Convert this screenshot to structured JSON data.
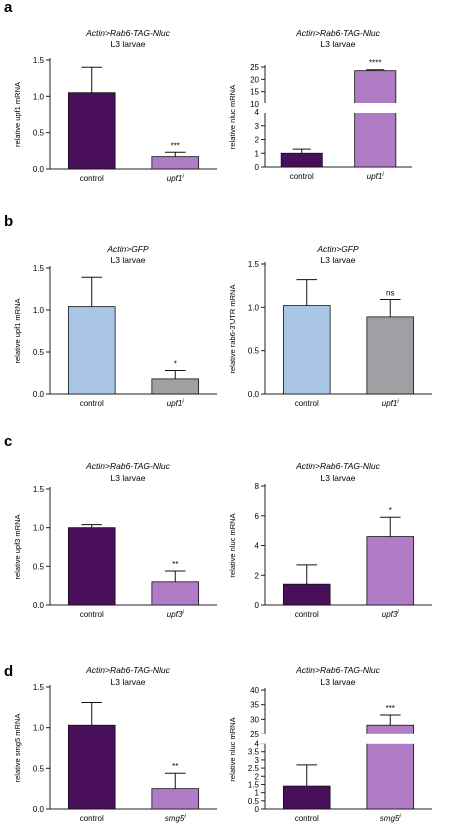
{
  "panels": [
    {
      "id": "a",
      "label": "a"
    },
    {
      "id": "b",
      "label": "b"
    },
    {
      "id": "c",
      "label": "c"
    },
    {
      "id": "d",
      "label": "d"
    }
  ],
  "colors": {
    "dark_purple": "#4a0f5a",
    "light_purple": "#b07cc6",
    "light_blue": "#a9c6e6",
    "grey": "#a0a0a4"
  },
  "chart_data": [
    {
      "panel": "a",
      "type": "bar",
      "title": "Actin>Rab6-TAG-Nluc",
      "subtitle": "L3 larvae",
      "ylabel": "relative upf1 mRNA",
      "categories": [
        "control",
        "upf1"
      ],
      "category_superscripts": [
        "",
        "i"
      ],
      "values": [
        1.05,
        0.17
      ],
      "errors": [
        0.35,
        0.06
      ],
      "significance": [
        "",
        "***"
      ],
      "colors": [
        "#4a0f5a",
        "#b07cc6"
      ],
      "ylim": [
        0,
        1.5
      ],
      "yticks": [
        "0.0",
        "0.5",
        "1.0",
        "1.5"
      ]
    },
    {
      "panel": "a",
      "type": "bar",
      "title": "Actin>Rab6-TAG-Nluc",
      "subtitle": "L3 larvae",
      "ylabel": "relative nluc mRNA",
      "categories": [
        "control",
        "upf1"
      ],
      "category_superscripts": [
        "",
        "i"
      ],
      "values": [
        1.0,
        23.5
      ],
      "errors": [
        0.3,
        0.4
      ],
      "significance": [
        "",
        "****"
      ],
      "colors": [
        "#4a0f5a",
        "#b07cc6"
      ],
      "ylim": [
        0,
        25
      ],
      "axis_break": [
        4,
        10
      ],
      "yticks": [
        "0",
        "1",
        "2",
        "3",
        "4",
        "10",
        "15",
        "20",
        "25"
      ]
    },
    {
      "panel": "b",
      "type": "bar",
      "title": "Actin>GFP",
      "subtitle": "L3 larvae",
      "ylabel": "relative upf1 mRNA",
      "categories": [
        "control",
        "upf1"
      ],
      "category_superscripts": [
        "",
        "i"
      ],
      "values": [
        1.04,
        0.18
      ],
      "errors": [
        0.35,
        0.1
      ],
      "significance": [
        "",
        "*"
      ],
      "colors": [
        "#a9c6e6",
        "#a0a0a4"
      ],
      "ylim": [
        0,
        1.5
      ],
      "yticks": [
        "0.0",
        "0.5",
        "1.0",
        "1.5"
      ]
    },
    {
      "panel": "b",
      "type": "bar",
      "title": "Actin>GFP",
      "subtitle": "L3 larvae",
      "ylabel": "relative rab6-3'UTR mRNA",
      "categories": [
        "control",
        "upf1"
      ],
      "category_superscripts": [
        "",
        "i"
      ],
      "values": [
        1.02,
        0.89
      ],
      "errors": [
        0.3,
        0.2
      ],
      "significance": [
        "",
        "ns"
      ],
      "colors": [
        "#a9c6e6",
        "#a0a0a4"
      ],
      "ylim": [
        0,
        1.5
      ],
      "yticks": [
        "0.0",
        "0.5",
        "1.0",
        "1.5"
      ]
    },
    {
      "panel": "c",
      "type": "bar",
      "title": "Actin>Rab6-TAG-Nluc",
      "subtitle": "L3 larvae",
      "ylabel": "relative upf3 mRNA",
      "categories": [
        "control",
        "upf3"
      ],
      "category_superscripts": [
        "",
        "i"
      ],
      "values": [
        1.0,
        0.3
      ],
      "errors": [
        0.04,
        0.14
      ],
      "significance": [
        "",
        "**"
      ],
      "colors": [
        "#4a0f5a",
        "#b07cc6"
      ],
      "ylim": [
        0,
        1.5
      ],
      "yticks": [
        "0.0",
        "0.5",
        "1.0",
        "1.5"
      ]
    },
    {
      "panel": "c",
      "type": "bar",
      "title": "Actin>Rab6-TAG-Nluc",
      "subtitle": "L3 larvae",
      "ylabel": "relative nluc mRNA",
      "categories": [
        "control",
        "upf3"
      ],
      "category_superscripts": [
        "",
        "i"
      ],
      "values": [
        1.4,
        4.6
      ],
      "errors": [
        1.3,
        1.3
      ],
      "significance": [
        "",
        "*"
      ],
      "colors": [
        "#4a0f5a",
        "#b07cc6"
      ],
      "ylim": [
        0,
        8
      ],
      "yticks": [
        "0",
        "2",
        "4",
        "6",
        "8"
      ]
    },
    {
      "panel": "d",
      "type": "bar",
      "title": "Actin>Rab6-TAG-Nluc",
      "subtitle": "L3 larvae",
      "ylabel": "relative smg5 mRNA",
      "categories": [
        "control",
        "smg5"
      ],
      "category_superscripts": [
        "",
        "i"
      ],
      "values": [
        1.03,
        0.25
      ],
      "errors": [
        0.28,
        0.19
      ],
      "significance": [
        "",
        "**"
      ],
      "colors": [
        "#4a0f5a",
        "#b07cc6"
      ],
      "ylim": [
        0,
        1.5
      ],
      "yticks": [
        "0.0",
        "0.5",
        "1.0",
        "1.5"
      ]
    },
    {
      "panel": "d",
      "type": "bar",
      "title": "Actin>Rab6-TAG-Nluc",
      "subtitle": "L3 larvae",
      "ylabel": "relative nluc mRNA",
      "categories": [
        "control",
        "smg5"
      ],
      "category_superscripts": [
        "",
        "i"
      ],
      "values": [
        1.4,
        28
      ],
      "errors": [
        1.3,
        3.5
      ],
      "significance": [
        "",
        "***"
      ],
      "colors": [
        "#4a0f5a",
        "#b07cc6"
      ],
      "ylim": [
        0,
        40
      ],
      "axis_break": [
        4,
        25
      ],
      "yticks": [
        "0",
        "0.5",
        "1",
        "1.5",
        "2",
        "2.5",
        "3",
        "3.5",
        "4",
        "25",
        "30",
        "35",
        "40"
      ]
    }
  ]
}
